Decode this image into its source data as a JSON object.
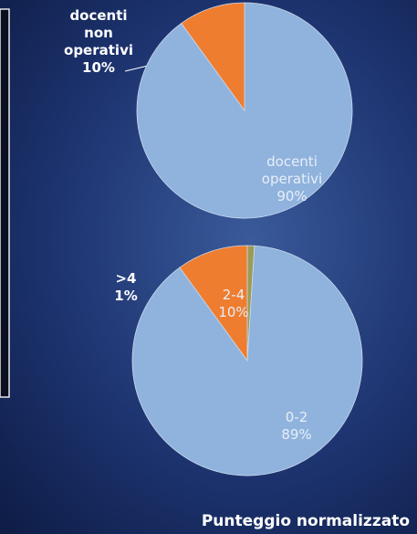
{
  "chart_data": [
    {
      "type": "pie",
      "categories": [
        "docenti operativi",
        "docenti non operativi"
      ],
      "values": [
        90,
        10
      ],
      "value_labels": [
        "90%",
        "10%"
      ],
      "colors": [
        "#8fb3dd",
        "#ee7d2f"
      ]
    },
    {
      "type": "pie",
      "title": "Punteggio normalizzato",
      "categories": [
        ">4",
        "0-2",
        "2-4"
      ],
      "values": [
        1,
        89,
        10
      ],
      "value_labels": [
        "1%",
        "89%",
        "10%"
      ],
      "colors": [
        "#9c9a55",
        "#8fb3dd",
        "#ee7d2f"
      ]
    }
  ]
}
